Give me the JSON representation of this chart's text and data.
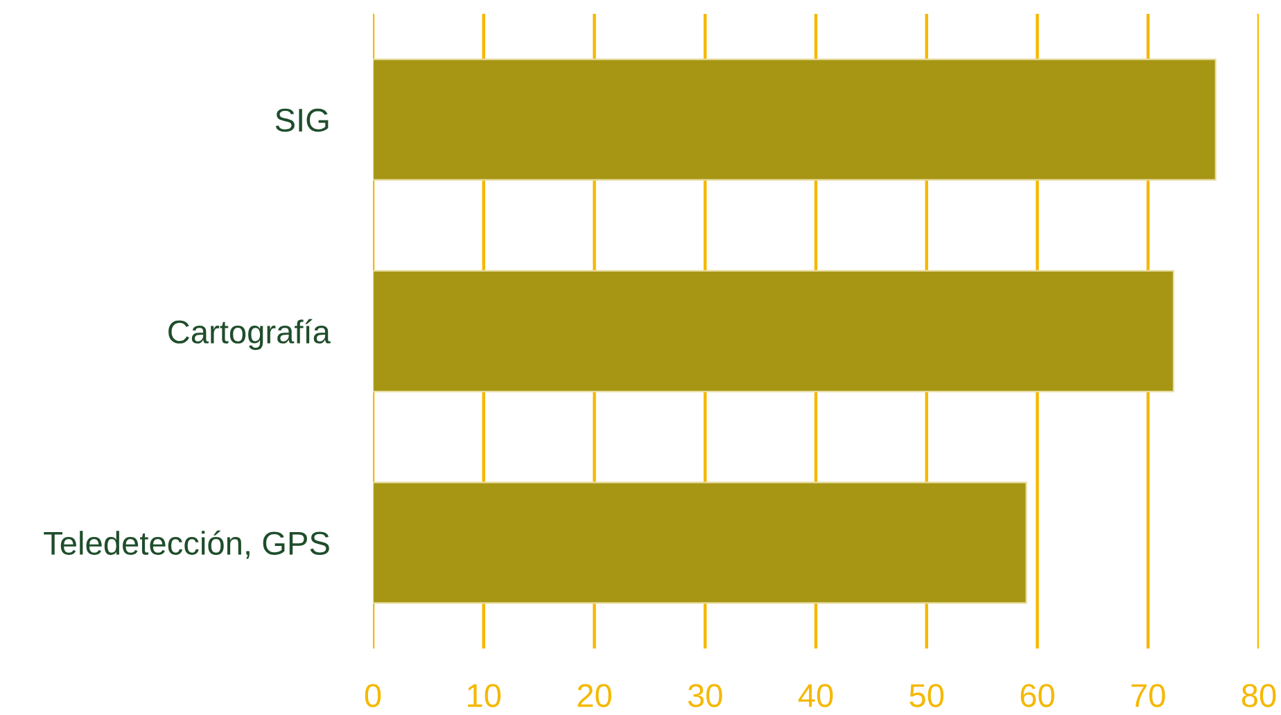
{
  "chart_data": {
    "type": "bar",
    "orientation": "horizontal",
    "categories": [
      "SIG",
      "Cartografía",
      "Teledetección, GPS"
    ],
    "values": [
      76.1,
      72.3,
      59.0
    ],
    "color": "#a69614",
    "xlim": [
      0,
      80
    ],
    "xticks": [
      0,
      10,
      20,
      30,
      40,
      50,
      60,
      70,
      80
    ],
    "grid": "x"
  }
}
